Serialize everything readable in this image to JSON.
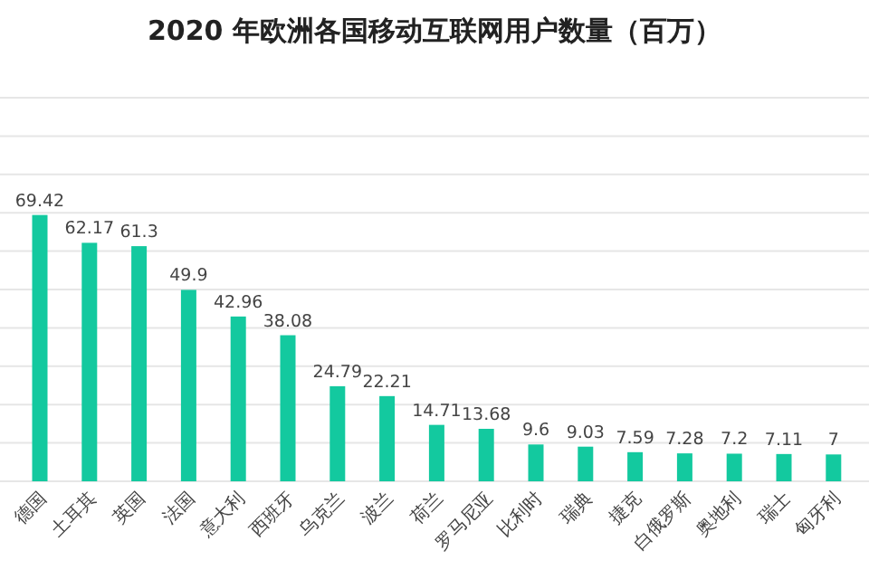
{
  "chart_data": {
    "type": "bar",
    "title": "2020 年欧洲各国移动互联网用户数量（百万）",
    "categories": [
      "德国",
      "土耳其",
      "英国",
      "法国",
      "意大利",
      "西班牙",
      "乌克兰",
      "波兰",
      "荷兰",
      "罗马尼亚",
      "比利时",
      "瑞典",
      "捷克",
      "白俄罗斯",
      "奥地利",
      "瑞士",
      "匈牙利"
    ],
    "values": [
      69.42,
      62.17,
      61.3,
      49.9,
      42.96,
      38.08,
      24.79,
      22.21,
      14.71,
      13.68,
      9.6,
      9.03,
      7.59,
      7.28,
      7.2,
      7.11,
      7
    ],
    "color": "#13c99f",
    "ylim": [
      0,
      100
    ],
    "yticks": [
      {
        "value": 0,
        "label": null
      },
      {
        "value": 10,
        "label": null
      },
      {
        "value": 20,
        "label": null
      },
      {
        "value": 30,
        "label": null
      },
      {
        "value": 40,
        "label": null
      },
      {
        "value": 50,
        "label": null
      },
      {
        "value": 60,
        "label": null
      },
      {
        "value": 70,
        "label": null
      },
      {
        "value": 80,
        "label": null
      },
      {
        "value": 90,
        "label": null
      },
      {
        "value": 100,
        "label": null
      }
    ],
    "grid": "y",
    "data_labels": true
  }
}
